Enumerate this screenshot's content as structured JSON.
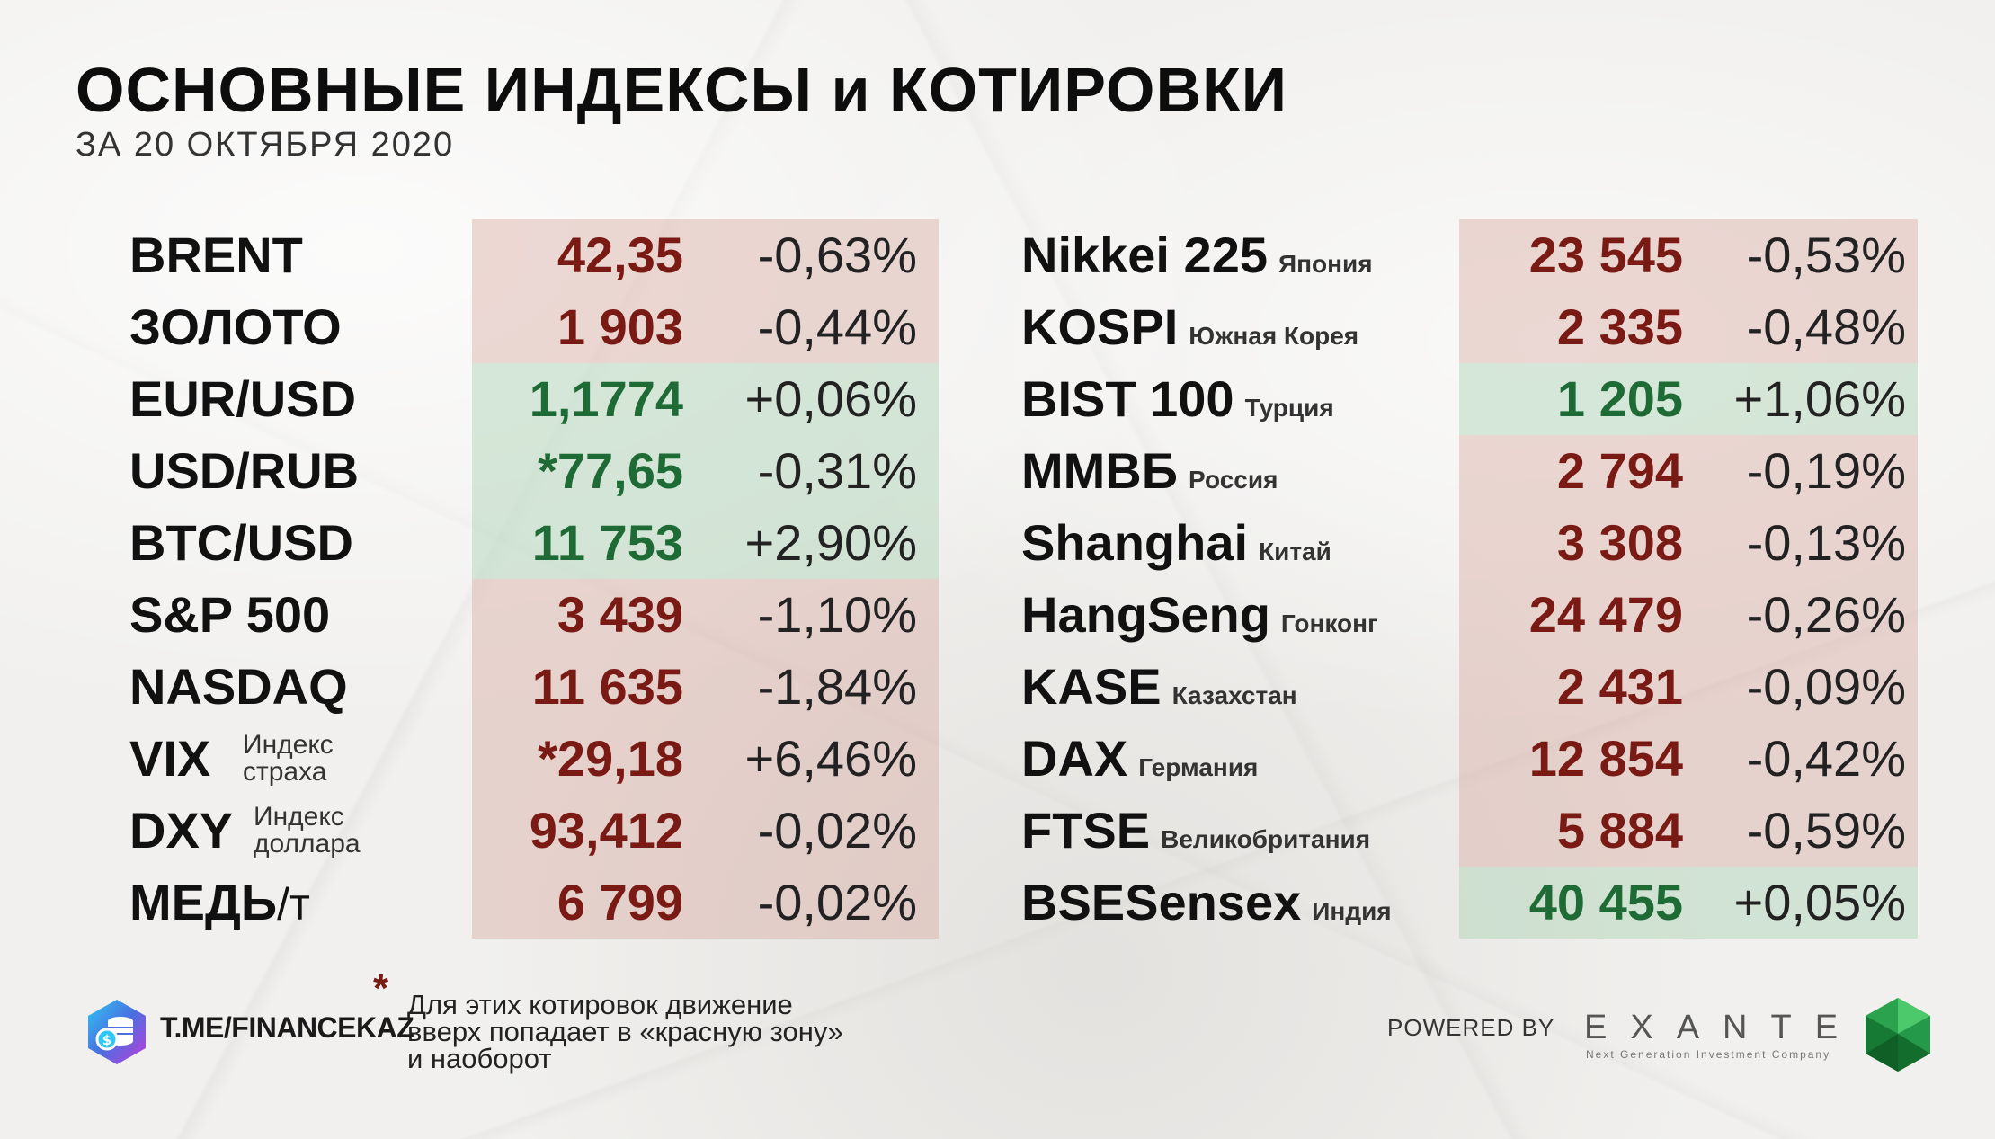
{
  "header": {
    "title": "ОСНОВНЫЕ ИНДЕКСЫ и КОТИРОВКИ",
    "subtitle": "ЗА 20 ОКТЯБРЯ 2020"
  },
  "left_table": [
    {
      "name": "BRENT",
      "value": "42,35",
      "change": "-0,63%",
      "zone": "red"
    },
    {
      "name": "ЗОЛОТО",
      "value": "1 903",
      "change": "-0,44%",
      "zone": "red"
    },
    {
      "name": "EUR/USD",
      "value": "1,1774",
      "change": "+0,06%",
      "zone": "green"
    },
    {
      "name": "USD/RUB",
      "value": "*77,65",
      "change": "-0,31%",
      "zone": "green"
    },
    {
      "name": "BTC/USD",
      "value": "11 753",
      "change": "+2,90%",
      "zone": "green"
    },
    {
      "name": "S&P 500",
      "value": "3 439",
      "change": "-1,10%",
      "zone": "red"
    },
    {
      "name": "NASDAQ",
      "value": "11 635",
      "change": "-1,84%",
      "zone": "red"
    },
    {
      "name": "VIX",
      "sub_line1": "Индекс",
      "sub_line2": "страха",
      "value": "*29,18",
      "change": "+6,46%",
      "zone": "red"
    },
    {
      "name": "DXY",
      "sub_line1": "Индекс",
      "sub_line2": "доллара",
      "value": "93,412",
      "change": "-0,02%",
      "zone": "red"
    },
    {
      "name": "МЕДЬ",
      "unit": "/т",
      "value": "6 799",
      "change": "-0,02%",
      "zone": "red"
    }
  ],
  "right_table": [
    {
      "name": "Nikkei 225",
      "country": "Япония",
      "value": "23 545",
      "change": "-0,53%",
      "zone": "red"
    },
    {
      "name": "KOSPI",
      "country": "Южная Корея",
      "value": "2 335",
      "change": "-0,48%",
      "zone": "red"
    },
    {
      "name": "BIST 100",
      "country": "Турция",
      "value": "1 205",
      "change": "+1,06%",
      "zone": "green"
    },
    {
      "name": "ММВБ",
      "country": "Россия",
      "value": "2 794",
      "change": "-0,19%",
      "zone": "red"
    },
    {
      "name": "Shanghai",
      "country": "Китай",
      "value": "3 308",
      "change": "-0,13%",
      "zone": "red"
    },
    {
      "name": "HangSeng",
      "country": "Гонконг",
      "value": "24 479",
      "change": "-0,26%",
      "zone": "red"
    },
    {
      "name": "KASE",
      "country": "Казахстан",
      "value": "2 431",
      "change": "-0,09%",
      "zone": "red"
    },
    {
      "name": "DAX",
      "country": "Германия",
      "value": "12 854",
      "change": "-0,42%",
      "zone": "red"
    },
    {
      "name": "FTSE",
      "country": "Великобритания",
      "value": "5 884",
      "change": "-0,59%",
      "zone": "red"
    },
    {
      "name": "BSESensex",
      "country": "Индия",
      "value": "40 455",
      "change": "+0,05%",
      "zone": "green"
    }
  ],
  "footer": {
    "telegram_link": "T.ME/FINANCEKAZ",
    "asterisk": "*",
    "note_line1": "Для этих котировок движение",
    "note_line2": "вверх попадает в «красную зону»",
    "note_line3": "и наоборот",
    "powered_by": "POWERED BY",
    "brand": "EXANTE",
    "brand_tagline": "Next Generation Investment Company"
  },
  "colors": {
    "negative_value": "#7a1a14",
    "positive_value": "#1f6b35",
    "red_zone": "#e5c7c1",
    "green_zone": "#d2e6d6"
  },
  "icons": {
    "telegram_logo": "coins-hexagon-icon",
    "exante_logo": "green-gem-icon"
  }
}
